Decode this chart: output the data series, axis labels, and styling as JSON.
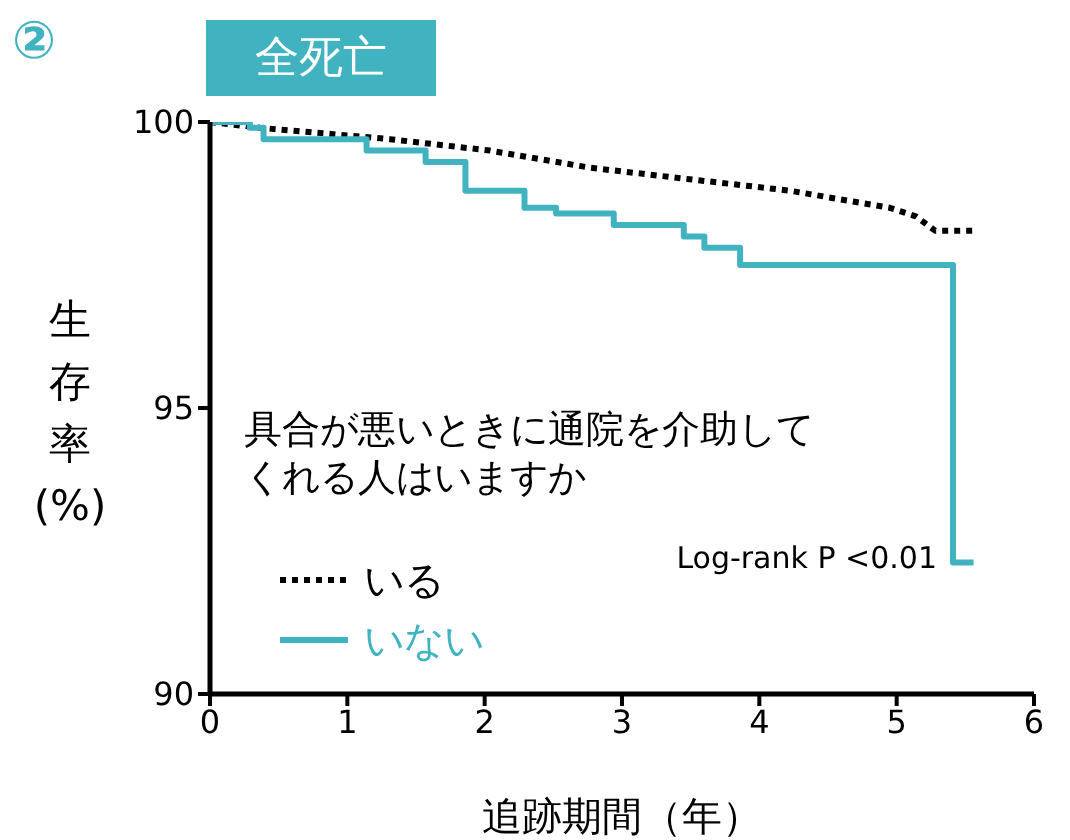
{
  "chart_data": {
    "type": "line",
    "title": "全死亡",
    "xlabel": "追跡期間（年）",
    "ylabel": "生存率(%)",
    "legend_title": "具合が悪いときに通院を介助してくれる人はいますか",
    "annotations": [
      "②",
      {
        "text": "Log-rank P <0.01",
        "x": 5.41,
        "y": 92.3
      }
    ],
    "xlim": [
      0,
      6
    ],
    "xticks": [
      0,
      1,
      2,
      3,
      4,
      5,
      6
    ],
    "ylim": [
      90,
      100
    ],
    "yticks": [
      90,
      95,
      100
    ],
    "legend": "bottom left",
    "marker": "none",
    "series": [
      {
        "name": "いる",
        "type": "line",
        "line_style": "dotted",
        "color": "#000000",
        "x": [
          0,
          0.36,
          1.31,
          2.04,
          2.77,
          3.49,
          4.22,
          4.95,
          5.14,
          5.28,
          5.56
        ],
        "values": [
          100,
          99.9,
          99.7,
          99.5,
          99.2,
          99.0,
          98.8,
          98.5,
          98.35,
          98.1,
          98.1
        ]
      },
      {
        "name": "いない",
        "type": "step",
        "line_style": "solid",
        "color": "#41b3c0",
        "x": [
          0,
          0.29,
          0.39,
          1.14,
          1.57,
          1.86,
          2.29,
          2.52,
          2.94,
          3.45,
          3.6,
          3.86,
          5.41,
          5.56
        ],
        "values": [
          100,
          99.9,
          99.7,
          99.5,
          99.3,
          98.8,
          98.5,
          98.4,
          98.2,
          98.0,
          97.8,
          97.5,
          92.3,
          92.3
        ]
      }
    ]
  }
}
